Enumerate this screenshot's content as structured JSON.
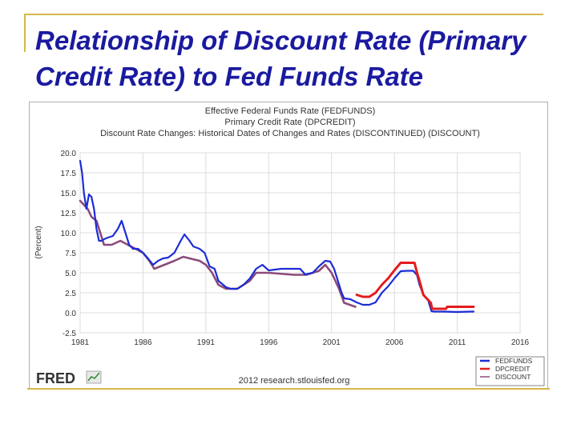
{
  "slide": {
    "title": "Relationship of Discount Rate (Primary Credit Rate) to Fed Funds Rate"
  },
  "branding": {
    "logo_text": "FRED",
    "credit": "2012 research.stlouisfed.org"
  },
  "colors": {
    "title": "#1a1aa0",
    "accent_rule": "#d4b84a",
    "fedfunds": "#1c2dd6",
    "dpcredit": "#e21c1c",
    "discount": "#8c4a7a"
  },
  "chart_data": {
    "type": "line",
    "title_lines": [
      "Effective Federal Funds Rate (FEDFUNDS)",
      "Primary Credit Rate (DPCREDIT)",
      "Discount Rate Changes: Historical Dates of Changes and Rates (DISCONTINUED) (DISCOUNT)"
    ],
    "ylabel": "(Percent)",
    "xlabel": "",
    "xlim": [
      1981,
      2016
    ],
    "ylim": [
      -2.5,
      20.0
    ],
    "x_ticks": [
      "1981",
      "1986",
      "1991",
      "1996",
      "2001",
      "2006",
      "2011",
      "2016"
    ],
    "y_ticks": [
      "20.0",
      "17.5",
      "15.0",
      "12.5",
      "10.0",
      "7.5",
      "5.0",
      "2.5",
      "0.0",
      "-2.5"
    ],
    "grid": true,
    "legend": {
      "position": "bottom-right",
      "entries": [
        "FEDFUNDS",
        "DPCREDIT",
        "DISCOUNT"
      ]
    },
    "series": [
      {
        "name": "FEDFUNDS",
        "x": [
          1981,
          1981.15,
          1981.3,
          1981.5,
          1981.7,
          1981.9,
          1982.1,
          1982.3,
          1982.5,
          1982.7,
          1982.9,
          1983.2,
          1983.6,
          1984.0,
          1984.3,
          1984.6,
          1984.9,
          1985.2,
          1985.6,
          1986.0,
          1986.4,
          1986.8,
          1987.2,
          1987.6,
          1988.0,
          1988.5,
          1989.0,
          1989.3,
          1989.7,
          1990.0,
          1990.5,
          1990.9,
          1991.3,
          1991.7,
          1992.0,
          1992.6,
          1993.0,
          1993.5,
          1994.0,
          1994.5,
          1995.0,
          1995.5,
          1996.0,
          1997.0,
          1998.0,
          1998.5,
          1998.9,
          1999.5,
          2000.0,
          2000.5,
          2000.9,
          2001.2,
          2001.5,
          2001.8,
          2002.0,
          2002.5,
          2003.0,
          2003.5,
          2004.0,
          2004.5,
          2005.0,
          2005.5,
          2006.0,
          2006.5,
          2007.0,
          2007.5,
          2007.8,
          2008.0,
          2008.3,
          2008.7,
          2008.95,
          2009.2,
          2010.0,
          2011.0,
          2012.0,
          2012.3
        ],
        "values": [
          19.0,
          17.5,
          15.0,
          13.0,
          14.8,
          14.5,
          13.0,
          10.5,
          9.0,
          9.0,
          9.2,
          9.4,
          9.6,
          10.5,
          11.5,
          10.0,
          8.5,
          8.0,
          8.0,
          7.5,
          6.8,
          6.0,
          6.5,
          6.8,
          6.9,
          7.5,
          9.0,
          9.8,
          9.0,
          8.3,
          8.0,
          7.5,
          5.8,
          5.5,
          4.0,
          3.2,
          3.0,
          3.0,
          3.5,
          4.3,
          5.5,
          6.0,
          5.3,
          5.5,
          5.5,
          5.5,
          4.8,
          5.0,
          5.8,
          6.5,
          6.4,
          5.5,
          4.0,
          2.5,
          1.8,
          1.7,
          1.3,
          1.0,
          1.0,
          1.3,
          2.5,
          3.3,
          4.3,
          5.2,
          5.25,
          5.25,
          4.7,
          3.5,
          2.3,
          1.5,
          0.2,
          0.15,
          0.15,
          0.1,
          0.15,
          0.15
        ]
      },
      {
        "name": "DPCREDIT",
        "x": [
          2003.0,
          2003.5,
          2004.0,
          2004.5,
          2005.0,
          2005.5,
          2006.0,
          2006.5,
          2007.0,
          2007.6,
          2007.8,
          2008.0,
          2008.3,
          2008.9,
          2009.0,
          2010.1,
          2010.2,
          2012.3
        ],
        "values": [
          2.25,
          2.0,
          2.0,
          2.5,
          3.5,
          4.3,
          5.3,
          6.25,
          6.25,
          6.25,
          5.0,
          4.0,
          2.25,
          1.25,
          0.5,
          0.5,
          0.75,
          0.75
        ]
      },
      {
        "name": "DISCOUNT",
        "x": [
          1981,
          1981.6,
          1981.9,
          1982.3,
          1982.6,
          1982.9,
          1983.5,
          1984.2,
          1984.8,
          1985.4,
          1986.0,
          1986.5,
          1986.9,
          1987.7,
          1988.5,
          1989.2,
          1990.5,
          1991.0,
          1991.5,
          1992.0,
          1992.6,
          1993.5,
          1994.0,
          1994.5,
          1995.0,
          1996.0,
          1998.0,
          1999.0,
          2000.0,
          2000.5,
          2001.0,
          2001.6,
          2002.0,
          2002.9
        ],
        "values": [
          14.0,
          13.0,
          12.0,
          11.5,
          10.0,
          8.5,
          8.5,
          9.0,
          8.5,
          8.0,
          7.5,
          6.5,
          5.5,
          6.0,
          6.5,
          7.0,
          6.5,
          6.0,
          5.0,
          3.5,
          3.0,
          3.0,
          3.5,
          4.0,
          5.0,
          5.0,
          4.75,
          4.75,
          5.25,
          6.0,
          5.0,
          3.0,
          1.25,
          0.75
        ]
      }
    ]
  }
}
